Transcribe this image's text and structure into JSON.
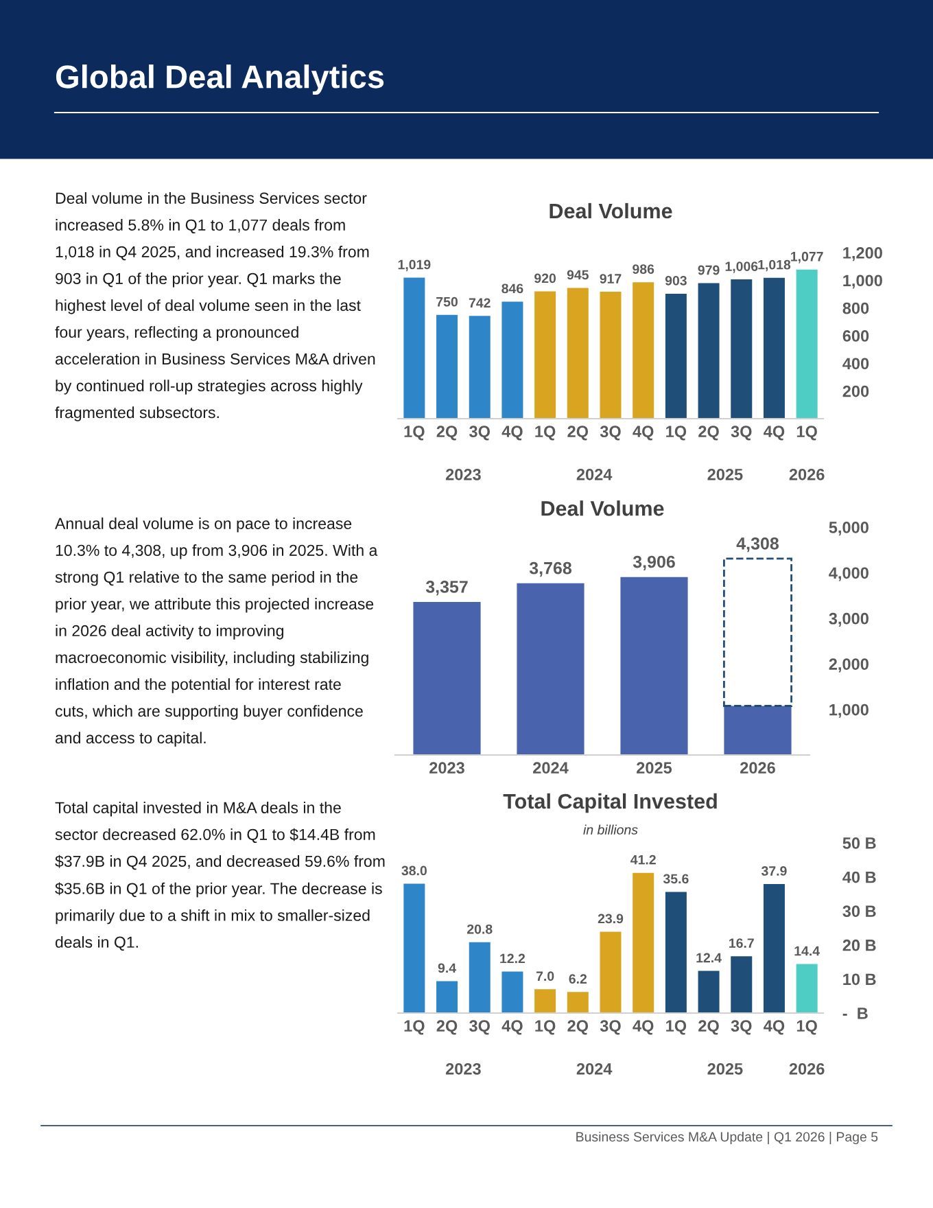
{
  "chart_data": [
    {
      "type": "other",
      "title": "Global Deal Analytics",
      "annotations": [
        "Deal volume in the Business Services sector\nincreased 5.8% in Q1 to 1,077 deals from\n1,018 in Q4 2025, and increased 19.3% from\n903 in Q1 of the prior year. Q1 marks the\nhighest level of deal volume seen in the last\nfour years, reflecting a pronounced\nacceleration in Business Services M&A driven\nby continued roll-up strategies across highly\nfragmented subsectors.",
        "Annual deal volume is on pace to increase\n10.3% to 4,308, up from 3,906 in 2025. With a\nstrong Q1 relative to the same period in the\nprior year, we attribute this projected increase\nin 2026 deal activity to improving\nmacroeconomic visibility, including stabilizing\ninflation and the potential for interest rate\ncuts, which are supporting buyer confidence\nand access to capital.",
        "Total capital invested in M&A deals in the\nsector decreased 62.0% in Q1 to $14.4B from\n$37.9B in Q4 2025, and decreased 59.6% from\n$35.6B in Q1 of the prior year. The decrease is\nprimarily due to a shift in mix to smaller-sized\ndeals in Q1.",
        "Business Services M&A Update | Q1 2026 | Page 5"
      ]
    },
    {
      "type": "bar",
      "title": "Deal Volume",
      "categories": [
        "1Q",
        "2Q",
        "3Q",
        "4Q",
        "1Q",
        "2Q",
        "3Q",
        "4Q",
        "1Q",
        "2Q",
        "3Q",
        "4Q",
        "1Q"
      ],
      "values": [
        1019,
        750,
        742,
        846,
        920,
        945,
        917,
        986,
        903,
        979,
        1006,
        1018,
        1077
      ],
      "value_labels": [
        "1,019",
        "750",
        "742",
        "846",
        "920",
        "945",
        "917",
        "986",
        "903",
        "979",
        "1,006",
        "1,018",
        "1,077"
      ],
      "colors": [
        "#2e86c8",
        "#2e86c8",
        "#2e86c8",
        "#2e86c8",
        "#d9a520",
        "#d9a520",
        "#d9a520",
        "#d9a520",
        "#1f4e79",
        "#1f4e79",
        "#1f4e79",
        "#1f4e79",
        "#4ecdc4"
      ],
      "ylim": [
        0,
        1200
      ],
      "yticks": [
        200,
        400,
        600,
        800,
        {
          "value": 1000,
          "label": "1,000"
        },
        {
          "value": 1200,
          "label": "1,200"
        }
      ],
      "annotations": [
        "2023",
        "2024",
        "2025",
        "2026"
      ]
    },
    {
      "type": "bar",
      "title": "Deal Volume",
      "categories": [
        "2023",
        "2024",
        "2025",
        "2026"
      ],
      "stacked": true,
      "series": [
        {
          "color": "#4a63ad",
          "values": [
            3357,
            3768,
            3906,
            1077
          ],
          "value_labels": [
            "3,357",
            "3,768",
            "3,906",
            null
          ]
        },
        {
          "color": "#1f4e79",
          "line_style": "dashed",
          "values": [
            null,
            null,
            null,
            3231
          ]
        }
      ],
      "totals": [
        null,
        null,
        null,
        "4,308"
      ],
      "ylim": [
        0,
        5000
      ],
      "yticks": [
        {
          "value": 1000,
          "label": "1,000"
        },
        {
          "value": 2000,
          "label": "2,000"
        },
        {
          "value": 3000,
          "label": "3,000"
        },
        {
          "value": 4000,
          "label": "4,000"
        },
        {
          "value": 5000,
          "label": "5,000"
        }
      ]
    },
    {
      "type": "bar",
      "title": "Total Capital Invested",
      "subtitle": "in billions",
      "categories": [
        "1Q",
        "2Q",
        "3Q",
        "4Q",
        "1Q",
        "2Q",
        "3Q",
        "4Q",
        "1Q",
        "2Q",
        "3Q",
        "4Q",
        "1Q"
      ],
      "values": [
        38.0,
        9.4,
        20.8,
        12.2,
        7.0,
        6.2,
        23.9,
        41.2,
        35.6,
        12.4,
        16.7,
        37.9,
        14.4
      ],
      "value_labels": [
        "38.0",
        "9.4",
        "20.8",
        "12.2",
        "7.0",
        "6.2",
        "23.9",
        "41.2",
        "35.6",
        "12.4",
        "16.7",
        "37.9",
        "14.4"
      ],
      "colors": [
        "#2e86c8",
        "#2e86c8",
        "#2e86c8",
        "#2e86c8",
        "#d9a520",
        "#d9a520",
        "#d9a520",
        "#d9a520",
        "#1f4e79",
        "#1f4e79",
        "#1f4e79",
        "#1f4e79",
        "#4ecdc4"
      ],
      "ylim": [
        0,
        50
      ],
      "yticks": [
        {
          "value": 0,
          "label": "-  B"
        },
        {
          "value": 10,
          "label": "10 B"
        },
        {
          "value": 20,
          "label": "20 B"
        },
        {
          "value": 30,
          "label": "30 B"
        },
        {
          "value": 40,
          "label": "40 B"
        },
        {
          "value": 50,
          "label": "50 B"
        }
      ],
      "annotations": [
        "2023",
        "2024",
        "2025",
        "2026"
      ]
    }
  ]
}
